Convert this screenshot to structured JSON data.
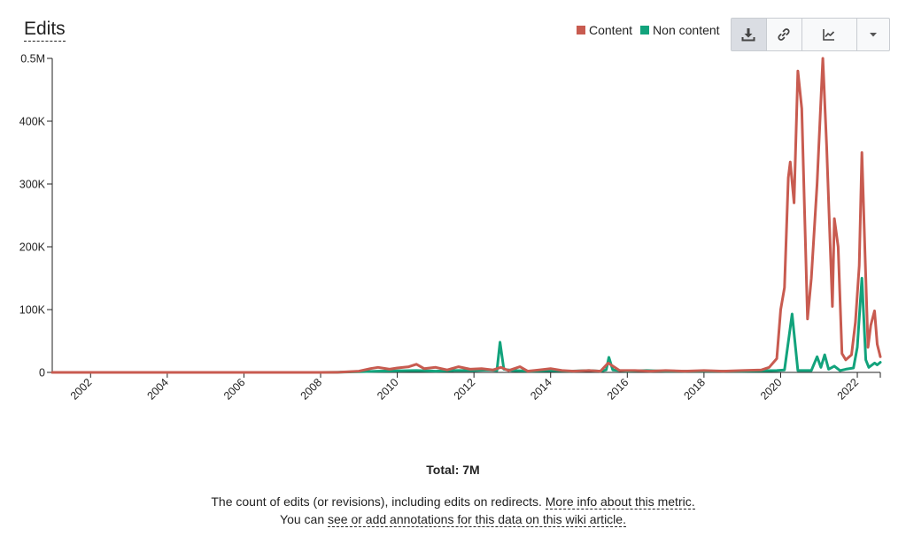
{
  "title": "Edits",
  "legend": [
    {
      "label": "Content",
      "color": "#c85b50"
    },
    {
      "label": "Non content",
      "color": "#12a37c"
    }
  ],
  "toolbar": {
    "buttons": [
      {
        "name": "download-button",
        "icon": "download-icon"
      },
      {
        "name": "link-button",
        "icon": "link-icon"
      },
      {
        "name": "chart-type-button",
        "icon": "line-chart-icon"
      },
      {
        "name": "more-button",
        "icon": "chevron-down-icon"
      }
    ]
  },
  "total": "Total: 7M",
  "description": {
    "text": "The count of edits (or revisions), including edits on redirects.",
    "link1": "More info about this metric.",
    "line2_prefix": "You can",
    "link2": "see or add annotations for this data on this wiki article."
  },
  "chart_data": {
    "type": "line",
    "title": "Edits",
    "xlabel": "",
    "ylabel": "",
    "xlim": [
      2001.0,
      2022.6
    ],
    "ylim": [
      0,
      500000
    ],
    "y_ticks": [
      0,
      100000,
      200000,
      300000,
      400000,
      500000
    ],
    "y_tick_labels": [
      "0",
      "100K",
      "200K",
      "300K",
      "400K",
      "0.5M"
    ],
    "x_ticks": [
      2002,
      2004,
      2006,
      2008,
      2010,
      2012,
      2014,
      2016,
      2018,
      2020,
      2022
    ],
    "x_tick_labels": [
      "2002",
      "2004",
      "2006",
      "2008",
      "2010",
      "2012",
      "2014",
      "2016",
      "2018",
      "2020",
      "2022"
    ],
    "grid": false,
    "legend_position": "top-right",
    "series": [
      {
        "name": "Content",
        "color": "#c85b50",
        "points": [
          [
            2001.0,
            0
          ],
          [
            2008.0,
            0
          ],
          [
            2008.5,
            300
          ],
          [
            2009.0,
            2000
          ],
          [
            2009.3,
            6000
          ],
          [
            2009.5,
            8000
          ],
          [
            2009.8,
            5000
          ],
          [
            2010.0,
            7000
          ],
          [
            2010.3,
            9000
          ],
          [
            2010.5,
            13000
          ],
          [
            2010.7,
            6000
          ],
          [
            2011.0,
            8000
          ],
          [
            2011.3,
            4000
          ],
          [
            2011.6,
            9000
          ],
          [
            2011.9,
            5000
          ],
          [
            2012.2,
            6000
          ],
          [
            2012.5,
            4000
          ],
          [
            2012.7,
            8000
          ],
          [
            2012.9,
            3000
          ],
          [
            2013.2,
            9000
          ],
          [
            2013.4,
            2000
          ],
          [
            2013.7,
            4000
          ],
          [
            2014.0,
            6000
          ],
          [
            2014.3,
            3000
          ],
          [
            2014.6,
            2000
          ],
          [
            2015.0,
            3000
          ],
          [
            2015.3,
            2000
          ],
          [
            2015.5,
            15000
          ],
          [
            2015.8,
            3000
          ],
          [
            2016.2,
            3000
          ],
          [
            2016.6,
            2000
          ],
          [
            2017.0,
            3000
          ],
          [
            2017.5,
            2000
          ],
          [
            2018.0,
            3000
          ],
          [
            2018.5,
            2000
          ],
          [
            2019.0,
            3000
          ],
          [
            2019.5,
            4000
          ],
          [
            2019.7,
            8000
          ],
          [
            2019.9,
            22000
          ],
          [
            2020.0,
            100000
          ],
          [
            2020.1,
            135000
          ],
          [
            2020.2,
            310000
          ],
          [
            2020.25,
            335000
          ],
          [
            2020.35,
            270000
          ],
          [
            2020.45,
            480000
          ],
          [
            2020.55,
            420000
          ],
          [
            2020.7,
            85000
          ],
          [
            2020.8,
            150000
          ],
          [
            2020.95,
            300000
          ],
          [
            2021.1,
            500000
          ],
          [
            2021.2,
            360000
          ],
          [
            2021.35,
            105000
          ],
          [
            2021.4,
            245000
          ],
          [
            2021.5,
            200000
          ],
          [
            2021.6,
            30000
          ],
          [
            2021.7,
            20000
          ],
          [
            2021.85,
            28000
          ],
          [
            2021.95,
            80000
          ],
          [
            2022.05,
            170000
          ],
          [
            2022.12,
            350000
          ],
          [
            2022.2,
            190000
          ],
          [
            2022.28,
            40000
          ],
          [
            2022.35,
            75000
          ],
          [
            2022.45,
            98000
          ],
          [
            2022.52,
            45000
          ],
          [
            2022.6,
            25000
          ]
        ]
      },
      {
        "name": "Non content",
        "color": "#12a37c",
        "points": [
          [
            2001.0,
            0
          ],
          [
            2008.0,
            0
          ],
          [
            2008.5,
            300
          ],
          [
            2009.0,
            1000
          ],
          [
            2009.5,
            2000
          ],
          [
            2010.0,
            2500
          ],
          [
            2010.5,
            3000
          ],
          [
            2011.0,
            2000
          ],
          [
            2011.5,
            3000
          ],
          [
            2012.0,
            3000
          ],
          [
            2012.4,
            4000
          ],
          [
            2012.6,
            3000
          ],
          [
            2012.68,
            48000
          ],
          [
            2012.78,
            5000
          ],
          [
            2013.0,
            3000
          ],
          [
            2013.5,
            2000
          ],
          [
            2014.0,
            3000
          ],
          [
            2014.5,
            2000
          ],
          [
            2015.0,
            3000
          ],
          [
            2015.3,
            2000
          ],
          [
            2015.45,
            4000
          ],
          [
            2015.52,
            24000
          ],
          [
            2015.62,
            4000
          ],
          [
            2016.0,
            2000
          ],
          [
            2016.5,
            3000
          ],
          [
            2017.0,
            2000
          ],
          [
            2018.0,
            2000
          ],
          [
            2019.0,
            2000
          ],
          [
            2019.9,
            3000
          ],
          [
            2020.1,
            4000
          ],
          [
            2020.3,
            93000
          ],
          [
            2020.45,
            3000
          ],
          [
            2020.8,
            3000
          ],
          [
            2020.95,
            25000
          ],
          [
            2021.05,
            8000
          ],
          [
            2021.15,
            28000
          ],
          [
            2021.25,
            5000
          ],
          [
            2021.4,
            10000
          ],
          [
            2021.55,
            3000
          ],
          [
            2021.7,
            5000
          ],
          [
            2021.9,
            7000
          ],
          [
            2022.0,
            40000
          ],
          [
            2022.12,
            150000
          ],
          [
            2022.22,
            20000
          ],
          [
            2022.3,
            8000
          ],
          [
            2022.45,
            15000
          ],
          [
            2022.52,
            12000
          ],
          [
            2022.6,
            16000
          ]
        ]
      }
    ]
  }
}
